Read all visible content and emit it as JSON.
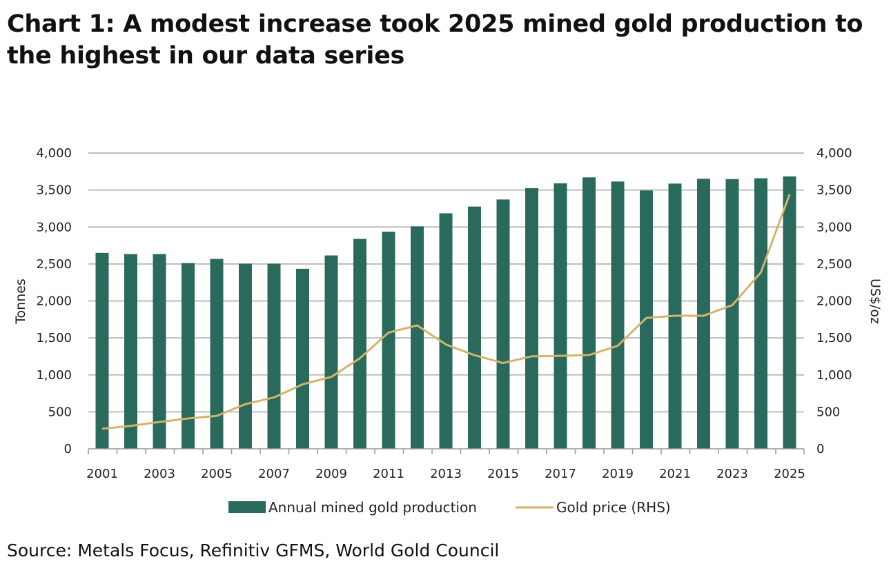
{
  "title": "Chart 1: A modest increase took 2025 mined gold production to the highest in our data series",
  "source": "Source: Metals Focus, Refinitiv GFMS, World Gold Council",
  "chart_data": {
    "type": "bar+line",
    "categories": [
      "2001",
      "2002",
      "2003",
      "2004",
      "2005",
      "2006",
      "2007",
      "2008",
      "2009",
      "2010",
      "2011",
      "2012",
      "2013",
      "2014",
      "2015",
      "2016",
      "2017",
      "2018",
      "2019",
      "2020",
      "2021",
      "2022",
      "2023",
      "2024",
      "2025"
    ],
    "x_tick_labels": [
      "2001",
      "2003",
      "2005",
      "2007",
      "2009",
      "2011",
      "2013",
      "2015",
      "2017",
      "2019",
      "2021",
      "2023",
      "2025"
    ],
    "series": [
      {
        "name": "Annual mined gold production",
        "type": "bar",
        "axis": "left",
        "color": "#2a6a5c",
        "values": [
          2650,
          2634,
          2634,
          2512,
          2568,
          2503,
          2503,
          2435,
          2615,
          2839,
          2937,
          3008,
          3185,
          3276,
          3372,
          3525,
          3591,
          3671,
          3615,
          3494,
          3587,
          3652,
          3648,
          3659,
          3684
        ]
      },
      {
        "name": "Gold price (RHS)",
        "type": "line",
        "axis": "right",
        "color": "#d4b36a",
        "values": [
          271,
          310,
          363,
          410,
          445,
          604,
          695,
          872,
          972,
          1225,
          1572,
          1669,
          1411,
          1266,
          1160,
          1251,
          1257,
          1268,
          1393,
          1770,
          1799,
          1800,
          1943,
          2386,
          3440
        ]
      }
    ],
    "ylabel": "Tonnes",
    "ylabel_right": "US$/oz",
    "ylim": [
      0,
      4000
    ],
    "ylim_right": [
      0,
      4000
    ],
    "y_ticks": [
      "0",
      "500",
      "1,000",
      "1,500",
      "2,000",
      "2,500",
      "3,000",
      "3,500",
      "4,000"
    ],
    "y_ticks_right": [
      "0",
      "500",
      "1,000",
      "1,500",
      "2,000",
      "2,500",
      "3,000",
      "3,500",
      "4,000"
    ],
    "grid": true,
    "legend_position": "bottom"
  }
}
